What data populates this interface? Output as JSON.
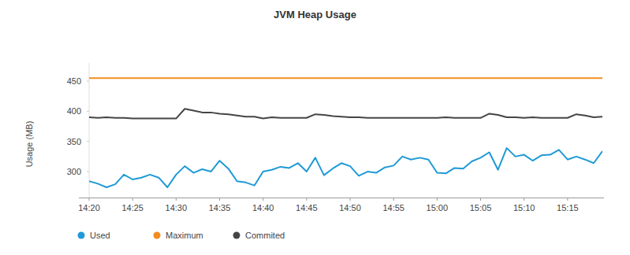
{
  "chart_data": {
    "type": "line",
    "title": "JVM Heap Usage",
    "y_label": "Usage (MB)",
    "categories": [
      "14:20",
      null,
      null,
      null,
      null,
      "14:25",
      null,
      null,
      null,
      null,
      "14:30",
      null,
      null,
      null,
      null,
      "14:35",
      null,
      null,
      null,
      null,
      "14:40",
      null,
      null,
      null,
      null,
      "14:45",
      null,
      null,
      null,
      null,
      "14:50",
      null,
      null,
      null,
      null,
      "14:55",
      null,
      null,
      null,
      null,
      "15:00",
      null,
      null,
      null,
      null,
      "15:05",
      null,
      null,
      null,
      null,
      "15:10",
      null,
      null,
      null,
      null,
      "15:15",
      null,
      null,
      null,
      null
    ],
    "series": [
      {
        "name": "Used",
        "color": "#1f9ad6",
        "line_style": "solid",
        "values": [
          284,
          280,
          274,
          279,
          295,
          287,
          290,
          295,
          290,
          274,
          295,
          309,
          298,
          304,
          300,
          318,
          305,
          284,
          282,
          277,
          300,
          303,
          308,
          306,
          314,
          300,
          323,
          294,
          305,
          314,
          309,
          293,
          300,
          298,
          307,
          310,
          325,
          320,
          323,
          320,
          298,
          297,
          306,
          305,
          317,
          323,
          332,
          303,
          339,
          325,
          328,
          318,
          327,
          328,
          336,
          320,
          325,
          320,
          314,
          334
        ]
      },
      {
        "name": "Maximum",
        "color": "#f28c1e",
        "line_style": "solid",
        "values": [
          455,
          455,
          455,
          455,
          455,
          455,
          455,
          455,
          455,
          455,
          455,
          455,
          455,
          455,
          455,
          455,
          455,
          455,
          455,
          455,
          455,
          455,
          455,
          455,
          455,
          455,
          455,
          455,
          455,
          455,
          455,
          455,
          455,
          455,
          455,
          455,
          455,
          455,
          455,
          455,
          455,
          455,
          455,
          455,
          455,
          455,
          455,
          455,
          455,
          455,
          455,
          455,
          455,
          455,
          455,
          455,
          455,
          455,
          455,
          455
        ]
      },
      {
        "name": "Commited",
        "color": "#454545",
        "line_style": "solid",
        "values": [
          390,
          389,
          390,
          389,
          389,
          388,
          388,
          388,
          388,
          388,
          388,
          404,
          401,
          398,
          398,
          396,
          395,
          393,
          391,
          391,
          388,
          390,
          389,
          389,
          389,
          389,
          395,
          394,
          392,
          391,
          390,
          390,
          389,
          389,
          389,
          389,
          389,
          389,
          389,
          389,
          389,
          390,
          389,
          389,
          389,
          389,
          396,
          394,
          390,
          390,
          389,
          390,
          389,
          389,
          389,
          389,
          395,
          393,
          390,
          391
        ]
      }
    ],
    "ylim": [
      257,
      480
    ],
    "yticks": [
      300,
      350,
      400,
      450
    ],
    "grid": false,
    "legend": "bottom"
  }
}
